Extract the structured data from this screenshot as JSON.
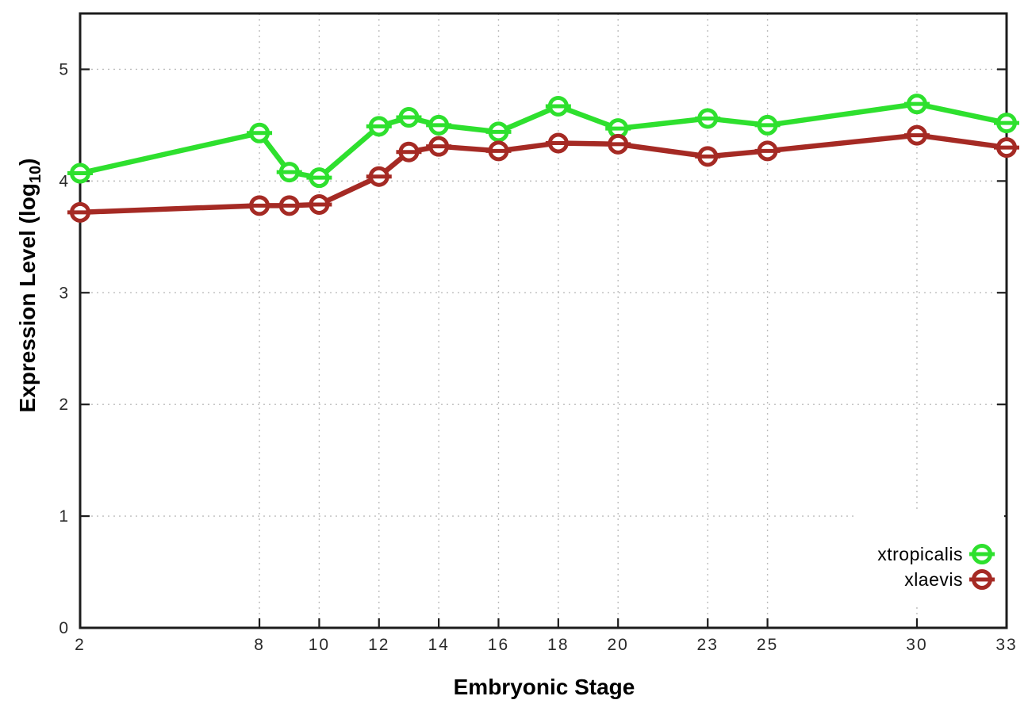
{
  "chart_data": {
    "type": "line",
    "title": "",
    "xlabel": "Embryonic Stage",
    "ylabel": "Expression Level (log10)",
    "ylabel_parts": {
      "main": "Expression Level (log",
      "sub": "10",
      "close": ")"
    },
    "x": [
      2,
      8,
      9,
      10,
      12,
      13,
      14,
      16,
      18,
      20,
      23,
      25,
      30,
      33
    ],
    "series": [
      {
        "name": "xtropicalis",
        "color": "#2ee02e",
        "values": [
          4.07,
          4.43,
          4.08,
          4.03,
          4.49,
          4.57,
          4.5,
          4.44,
          4.67,
          4.47,
          4.56,
          4.5,
          4.69,
          4.52
        ]
      },
      {
        "name": "xlaevis",
        "color": "#a52a24",
        "values": [
          3.72,
          3.78,
          3.78,
          3.79,
          4.04,
          4.26,
          4.31,
          4.27,
          4.34,
          4.33,
          4.22,
          4.27,
          4.41,
          4.3
        ]
      }
    ],
    "x_ticks": [
      2,
      8,
      10,
      12,
      14,
      16,
      18,
      20,
      23,
      25,
      30,
      33
    ],
    "y_ticks": [
      0,
      1,
      2,
      3,
      4,
      5
    ],
    "xlim": [
      2,
      33
    ],
    "ylim": [
      0,
      5.5
    ],
    "grid": true,
    "legend_position": "bottom-right",
    "colors": {
      "grid": "#bdbdbd",
      "border": "#1c1c1c",
      "text": "#2a2a2a",
      "background": "#ffffff"
    }
  }
}
